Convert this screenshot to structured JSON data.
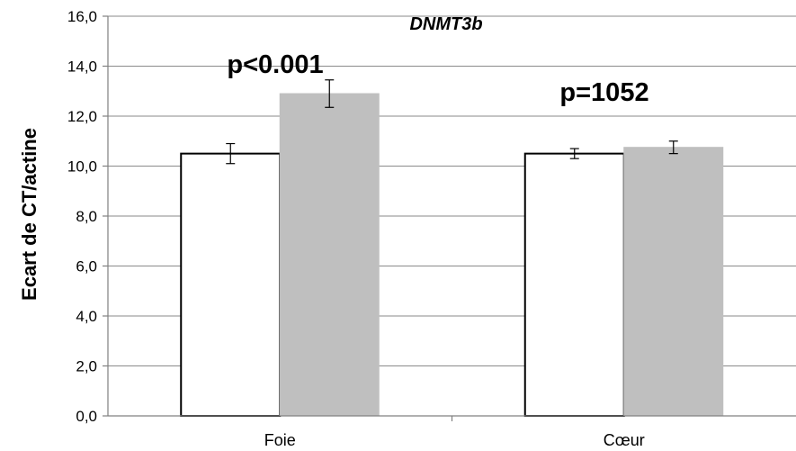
{
  "chart_data": {
    "type": "bar",
    "title": "DNMT3b",
    "ylabel": "Ecart de CT/actine",
    "xlabel": "",
    "ylim": [
      0,
      16
    ],
    "ytick_step": 2,
    "ytick_labels": [
      "0,0",
      "2,0",
      "4,0",
      "6,0",
      "8,0",
      "10,0",
      "12,0",
      "14,0",
      "16,0"
    ],
    "categories": [
      "Foie",
      "Cœur"
    ],
    "series": [
      {
        "color": "#ffffff",
        "stroke": "#000000",
        "values": [
          10.5,
          10.5
        ],
        "errors": [
          0.4,
          0.2
        ]
      },
      {
        "color": "#bfbfbf",
        "stroke": "#bfbfbf",
        "values": [
          12.9,
          10.75
        ],
        "errors": [
          0.55,
          0.25
        ]
      }
    ],
    "annotations": [
      "p<0.001",
      "p=1052"
    ],
    "grid": true,
    "legend": "none"
  }
}
